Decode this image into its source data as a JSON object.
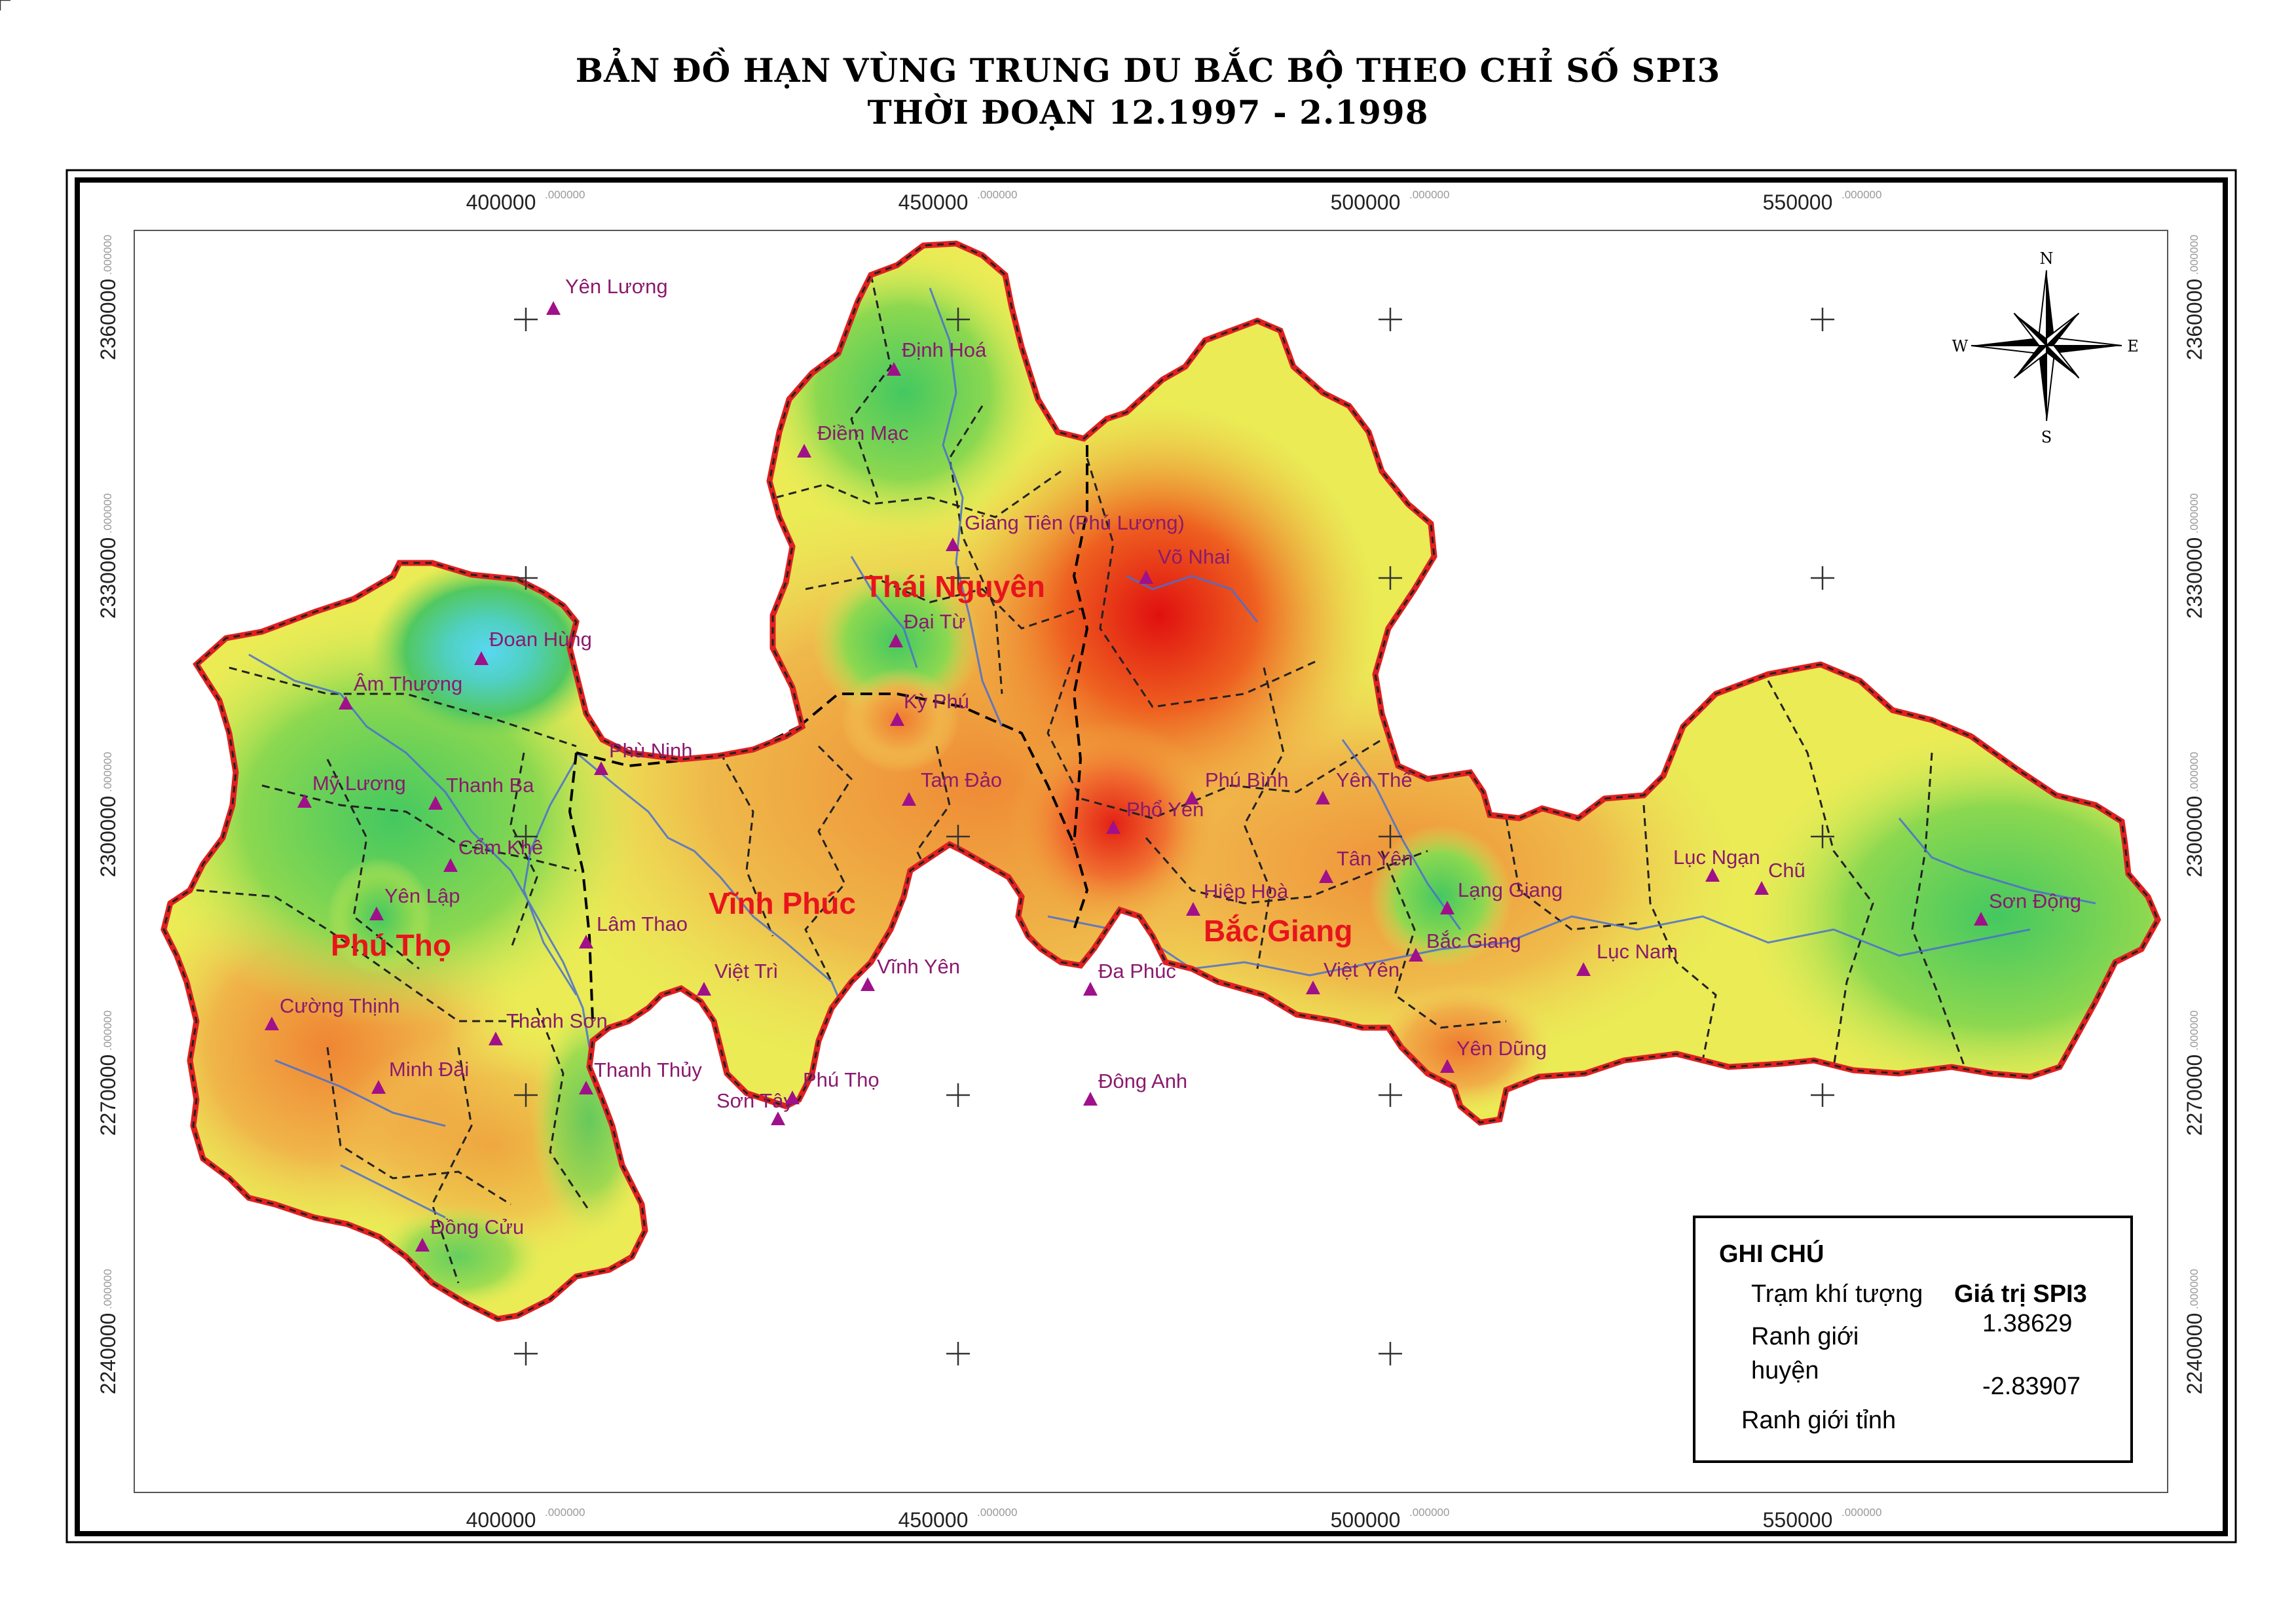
{
  "title": {
    "line1": "BẢN ĐỒ HẠN VÙNG TRUNG DU BẮC BỘ THEO CHỈ SỐ SPI3",
    "line2": "THỜI ĐOẠN 12.1997 - 2.1998"
  },
  "grid": {
    "x_labels": [
      "400000",
      "450000",
      "500000",
      "550000"
    ],
    "x_suffix": ".000000",
    "y_labels": [
      "2360000",
      "2330000",
      "2300000",
      "2270000",
      "2240000"
    ],
    "y_suffix": ".000000"
  },
  "compass": {
    "n": "N",
    "s": "S",
    "e": "E",
    "w": "W"
  },
  "provinces": [
    {
      "name": "Thái Nguyên",
      "color": "#e8141c"
    },
    {
      "name": "Vĩnh Phúc",
      "color": "#e8141c"
    },
    {
      "name": "Phú Thọ",
      "color": "#e8141c"
    },
    {
      "name": "Bắc Giang",
      "color": "#e8141c"
    }
  ],
  "stations": [
    {
      "name": "Yên Lương",
      "spi": null
    },
    {
      "name": "Định Hoá"
    },
    {
      "name": "Điềm Mạc"
    },
    {
      "name": "Giang Tiên (Phú Lương)"
    },
    {
      "name": "Võ Nhai"
    },
    {
      "name": "Đại Từ"
    },
    {
      "name": "Kỳ Phú"
    },
    {
      "name": "Tam Đảo"
    },
    {
      "name": "Phổ Yên"
    },
    {
      "name": "Phú Bình"
    },
    {
      "name": "Yên Thế"
    },
    {
      "name": "Tân Yên"
    },
    {
      "name": "Hiệp Hoà"
    },
    {
      "name": "Lạng Giang"
    },
    {
      "name": "Bắc Giang"
    },
    {
      "name": "Việt Yên"
    },
    {
      "name": "Lục Ngạn"
    },
    {
      "name": "Chũ"
    },
    {
      "name": "Sơn Động"
    },
    {
      "name": "Lục Nam"
    },
    {
      "name": "Yên Dũng"
    },
    {
      "name": "Đa Phúc"
    },
    {
      "name": "Đông Anh"
    },
    {
      "name": "Vĩnh Yên"
    },
    {
      "name": "Việt Trì"
    },
    {
      "name": "Sơn Tây"
    },
    {
      "name": "Phú Thọ"
    },
    {
      "name": "Lâm Thao"
    },
    {
      "name": "Đoan Hùng"
    },
    {
      "name": "Âm Thượng"
    },
    {
      "name": "Phù Ninh"
    },
    {
      "name": "Mỹ Lương"
    },
    {
      "name": "Thanh Ba"
    },
    {
      "name": "Cẩm Khê"
    },
    {
      "name": "Yên Lập"
    },
    {
      "name": "Cường Thịnh"
    },
    {
      "name": "Thanh Sơn"
    },
    {
      "name": "Minh Đài"
    },
    {
      "name": "Thanh Thủy"
    },
    {
      "name": "Đồng Cửu"
    }
  ],
  "legend": {
    "title": "GHI CHÚ",
    "station_label": "Trạm khí tượng",
    "district_label_1": "Ranh giới",
    "district_label_2": "huyện",
    "province_label": "Ranh giới tỉnh",
    "spi_title": "Giá trị SPI3",
    "spi_max": "1.38629",
    "spi_min": "-2.83907"
  },
  "colors": {
    "station": "#a0108a",
    "station_label": "#8b1a6e",
    "province_border": "#e02020",
    "river": "#4a6fd0",
    "spi_high": "#5ad8f0",
    "spi_mid_high": "#4cc84c",
    "spi_mid": "#f0f050",
    "spi_mid_low": "#f0a040",
    "spi_low": "#e01010"
  }
}
